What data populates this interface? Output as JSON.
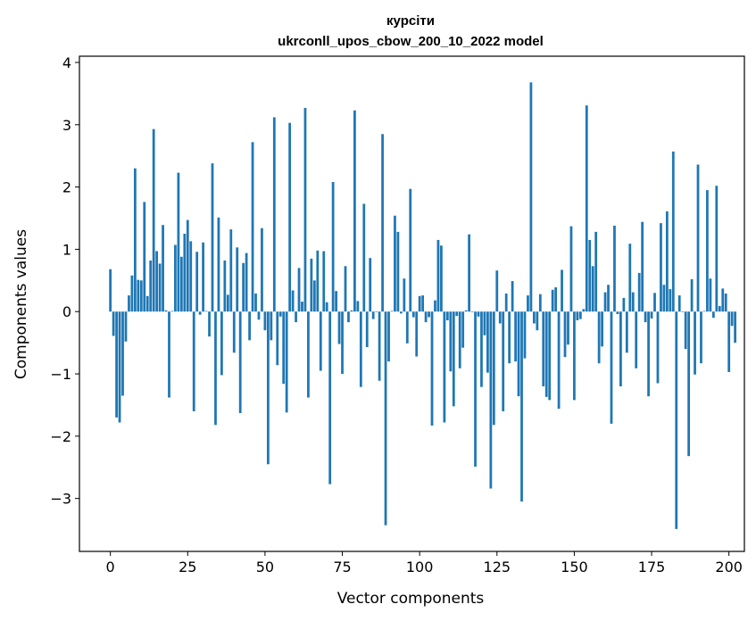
{
  "chart_data": {
    "type": "bar",
    "title": "курсіти",
    "subtitle": "ukrconll_upos_cbow_200_10_2022 model",
    "xlabel": "Vector components",
    "ylabel": "Components values",
    "xlim": [
      -10,
      205
    ],
    "ylim": [
      -3.85,
      4.1
    ],
    "xticks": [
      0,
      25,
      50,
      75,
      100,
      125,
      150,
      175,
      200
    ],
    "yticks": [
      -3,
      -2,
      -1,
      0,
      1,
      2,
      3,
      4
    ],
    "xtick_labels": [
      "0",
      "25",
      "50",
      "75",
      "100",
      "125",
      "150",
      "175",
      "200"
    ],
    "ytick_labels": [
      "−3",
      "−2",
      "−1",
      "0",
      "1",
      "2",
      "3",
      "4"
    ],
    "grid": false,
    "bar_color": "#1f77b4",
    "values": [
      0.68,
      -0.39,
      -1.7,
      -1.78,
      -1.35,
      -0.48,
      0.26,
      0.58,
      2.3,
      0.51,
      0.5,
      1.76,
      0.25,
      0.82,
      2.93,
      0.97,
      0.77,
      1.39,
      0.02,
      -1.38,
      0.01,
      1.07,
      2.23,
      0.88,
      1.25,
      1.47,
      1.13,
      -1.6,
      0.96,
      -0.05,
      1.11,
      0.01,
      -0.4,
      2.38,
      -1.82,
      1.51,
      -1.02,
      0.82,
      0.27,
      1.32,
      -0.66,
      1.03,
      -1.63,
      0.78,
      0.94,
      -0.46,
      2.72,
      0.29,
      -0.13,
      1.34,
      -0.3,
      -2.45,
      -0.46,
      3.12,
      -0.86,
      -0.08,
      -1.16,
      -1.62,
      3.03,
      0.34,
      -0.17,
      0.7,
      0.16,
      3.27,
      -1.38,
      0.85,
      0.5,
      0.98,
      -0.95,
      0.97,
      0.15,
      -2.77,
      2.08,
      0.33,
      -0.52,
      -1.0,
      0.73,
      -0.17,
      0.02,
      3.23,
      0.17,
      -1.21,
      1.73,
      -0.57,
      0.86,
      -0.12,
      0.0,
      -1.11,
      2.85,
      -3.43,
      -0.8,
      0.01,
      1.54,
      1.28,
      -0.03,
      0.53,
      -0.51,
      1.97,
      -0.09,
      -0.72,
      0.25,
      0.26,
      -0.17,
      -0.09,
      -1.83,
      0.18,
      1.15,
      1.06,
      -1.78,
      -0.14,
      -0.96,
      -1.52,
      -0.07,
      -0.91,
      -0.58,
      0.02,
      1.24,
      0.0,
      -2.49,
      -0.08,
      -1.21,
      -0.38,
      -0.98,
      -2.84,
      -1.82,
      0.66,
      -0.19,
      -1.6,
      0.29,
      -0.83,
      0.49,
      -0.8,
      -1.36,
      -3.05,
      -0.75,
      0.26,
      3.68,
      -0.19,
      -0.3,
      0.28,
      -1.2,
      -1.37,
      -1.42,
      0.35,
      0.39,
      -1.56,
      0.67,
      -0.73,
      -0.53,
      1.37,
      -1.42,
      -0.14,
      -0.12,
      0.04,
      3.31,
      1.15,
      0.73,
      1.28,
      -0.83,
      -0.56,
      0.31,
      0.43,
      -1.8,
      1.38,
      -0.04,
      -1.2,
      0.22,
      -0.66,
      1.09,
      0.31,
      -0.91,
      0.62,
      1.44,
      -0.17,
      -1.36,
      -0.11,
      0.3,
      -1.15,
      1.42,
      0.43,
      1.61,
      0.36,
      2.57,
      -3.49,
      0.26,
      0.0,
      -0.6,
      -2.32,
      0.52,
      -1.01,
      2.36,
      -0.83,
      0.01,
      1.95,
      0.53,
      -0.1,
      2.02,
      0.09,
      0.37,
      0.29,
      -0.97,
      -0.23,
      -0.5
    ]
  }
}
